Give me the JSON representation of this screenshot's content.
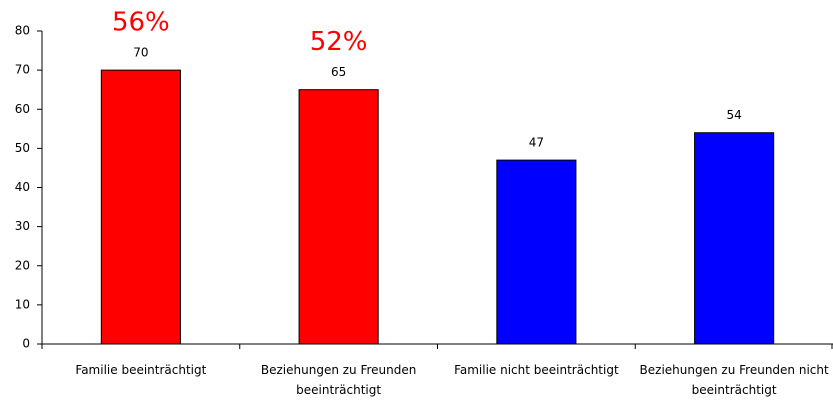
{
  "chart_data": {
    "type": "bar",
    "categories": [
      "Familie beeinträchtigt",
      "Beziehungen zu Freunden beeinträchtigt",
      "Familie nicht beeinträchtigt",
      "Beziehungen zu Freunden nicht beeinträchtigt"
    ],
    "values": [
      70,
      65,
      47,
      54
    ],
    "colors": [
      "#ff0000",
      "#ff0000",
      "#0000ff",
      "#0000ff"
    ],
    "annotations": [
      {
        "text": "56%",
        "color": "#ff0000"
      },
      {
        "text": "52%",
        "color": "#ff0000"
      }
    ],
    "ylim": [
      0,
      80
    ],
    "yticks": [
      0,
      10,
      20,
      30,
      40,
      50,
      60,
      70,
      80
    ],
    "grid": false
  }
}
